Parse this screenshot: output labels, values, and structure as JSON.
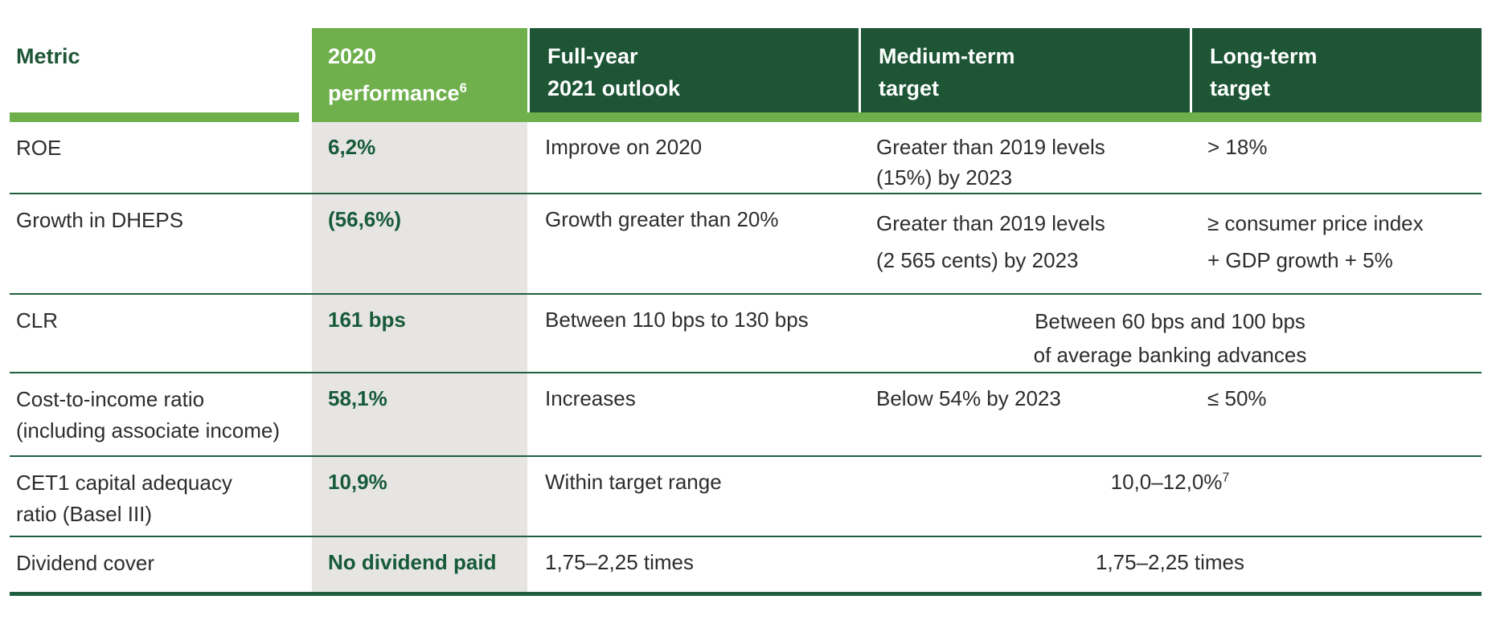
{
  "colors": {
    "header_dark_green": "#1d5535",
    "accent_light_green": "#6fb04d",
    "value_text_green": "#175a39",
    "separator_line_green": "#1f5f3f",
    "body_text": "#2d2d2d",
    "performance_column_grey": "#e6e5e3"
  },
  "table": {
    "header": {
      "metric": "Metric",
      "performance": {
        "line1": "2020",
        "line2": "performance",
        "sup": "6"
      },
      "outlook": {
        "line1": "Full-year",
        "line2": "2021 outlook"
      },
      "medium": {
        "line1": "Medium-term",
        "line2": "target"
      },
      "long": {
        "line1": "Long-term",
        "line2": "target"
      }
    },
    "rows": [
      {
        "metric": [
          "ROE"
        ],
        "performance": "6,2%",
        "outlook": [
          "Improve on 2020"
        ],
        "medium": [
          "Greater than 2019 levels",
          "(15%) by 2023"
        ],
        "long": [
          "> 18%"
        ]
      },
      {
        "metric": [
          "Growth in DHEPS"
        ],
        "performance": "(56,6%)",
        "outlook": [
          "Growth greater than 20%"
        ],
        "medium": [
          "Greater than 2019 levels",
          "(2 565 cents) by 2023"
        ],
        "long": [
          "≥ consumer price index",
          "+ GDP growth + 5%"
        ]
      },
      {
        "metric": [
          "CLR"
        ],
        "performance": "161 bps",
        "outlook": [
          "Between 110 bps to 130 bps"
        ],
        "merged": [
          "Between 60 bps and 100 bps",
          "of average banking advances"
        ]
      },
      {
        "metric": [
          "Cost-to-income ratio",
          "(including associate income)"
        ],
        "performance": "58,1%",
        "outlook": [
          "Increases"
        ],
        "medium": [
          "Below 54% by 2023"
        ],
        "long": [
          "≤ 50%"
        ]
      },
      {
        "metric": [
          "CET1 capital adequacy",
          "ratio (Basel III)"
        ],
        "performance": "10,9%",
        "outlook": [
          "Within target range"
        ],
        "merged_value": {
          "text": "10,0–12,0%",
          "sup": "7"
        }
      },
      {
        "metric": [
          "Dividend cover"
        ],
        "performance": "No dividend paid",
        "outlook": [
          "1,75–2,25 times"
        ],
        "merged": [
          "1,75–2,25 times"
        ]
      }
    ]
  }
}
